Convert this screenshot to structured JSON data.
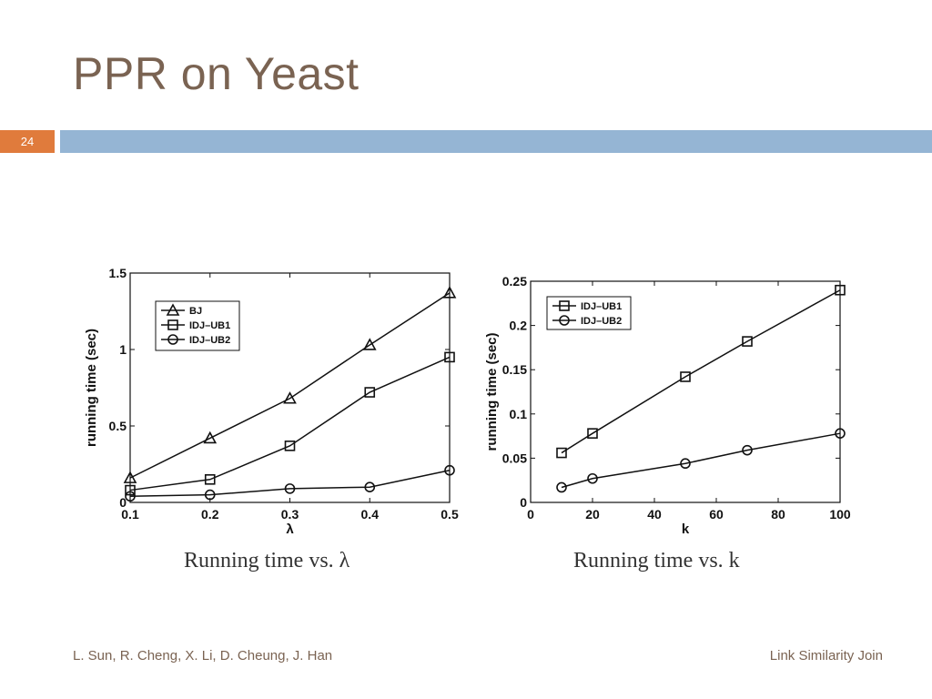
{
  "slide": {
    "title": "PPR on Yeast",
    "number": "24",
    "footer_left": "L. Sun, R. Cheng, X. Li, D. Cheung, J. Han",
    "footer_right": "Link Similarity Join",
    "accent_color": "#e07b3c",
    "bar_color": "#95b5d4"
  },
  "chart_data": [
    {
      "type": "line",
      "caption": "Running time vs. λ",
      "xlabel": "λ",
      "ylabel": "running time (sec)",
      "xlim": [
        0.1,
        0.5
      ],
      "ylim": [
        0,
        1.5
      ],
      "xticks": [
        0.1,
        0.2,
        0.3,
        0.4,
        0.5
      ],
      "xtick_labels": [
        "0.1",
        "0.2",
        "0.3",
        "0.4",
        "0.5"
      ],
      "yticks": [
        0,
        0.5,
        1,
        1.5
      ],
      "ytick_labels": [
        "0",
        "0.5",
        "1",
        "1.5"
      ],
      "grid": false,
      "legend": "top-left",
      "x": [
        0.1,
        0.2,
        0.3,
        0.4,
        0.5
      ],
      "series": [
        {
          "name": "BJ",
          "marker": "triangle",
          "values": [
            0.16,
            0.42,
            0.68,
            1.03,
            1.37
          ]
        },
        {
          "name": "IDJ–UB1",
          "marker": "square",
          "values": [
            0.08,
            0.15,
            0.37,
            0.72,
            0.95
          ]
        },
        {
          "name": "IDJ–UB2",
          "marker": "circle",
          "values": [
            0.04,
            0.05,
            0.09,
            0.1,
            0.21
          ]
        }
      ]
    },
    {
      "type": "line",
      "caption": "Running time vs. k",
      "xlabel": "k",
      "ylabel": "running time (sec)",
      "xlim": [
        0,
        100
      ],
      "ylim": [
        0,
        0.25
      ],
      "xticks": [
        0,
        20,
        40,
        60,
        80,
        100
      ],
      "xtick_labels": [
        "0",
        "20",
        "40",
        "60",
        "80",
        "100"
      ],
      "yticks": [
        0,
        0.05,
        0.1,
        0.15,
        0.2,
        0.25
      ],
      "ytick_labels": [
        "0",
        "0.05",
        "0.1",
        "0.15",
        "0.2",
        "0.25"
      ],
      "grid": false,
      "legend": "top-left",
      "x": [
        10,
        20,
        50,
        70,
        100
      ],
      "series": [
        {
          "name": "IDJ–UB1",
          "marker": "square",
          "values": [
            0.056,
            0.078,
            0.142,
            0.182,
            0.24
          ]
        },
        {
          "name": "IDJ–UB2",
          "marker": "circle",
          "values": [
            0.017,
            0.027,
            0.044,
            0.059,
            0.078
          ]
        }
      ]
    }
  ]
}
